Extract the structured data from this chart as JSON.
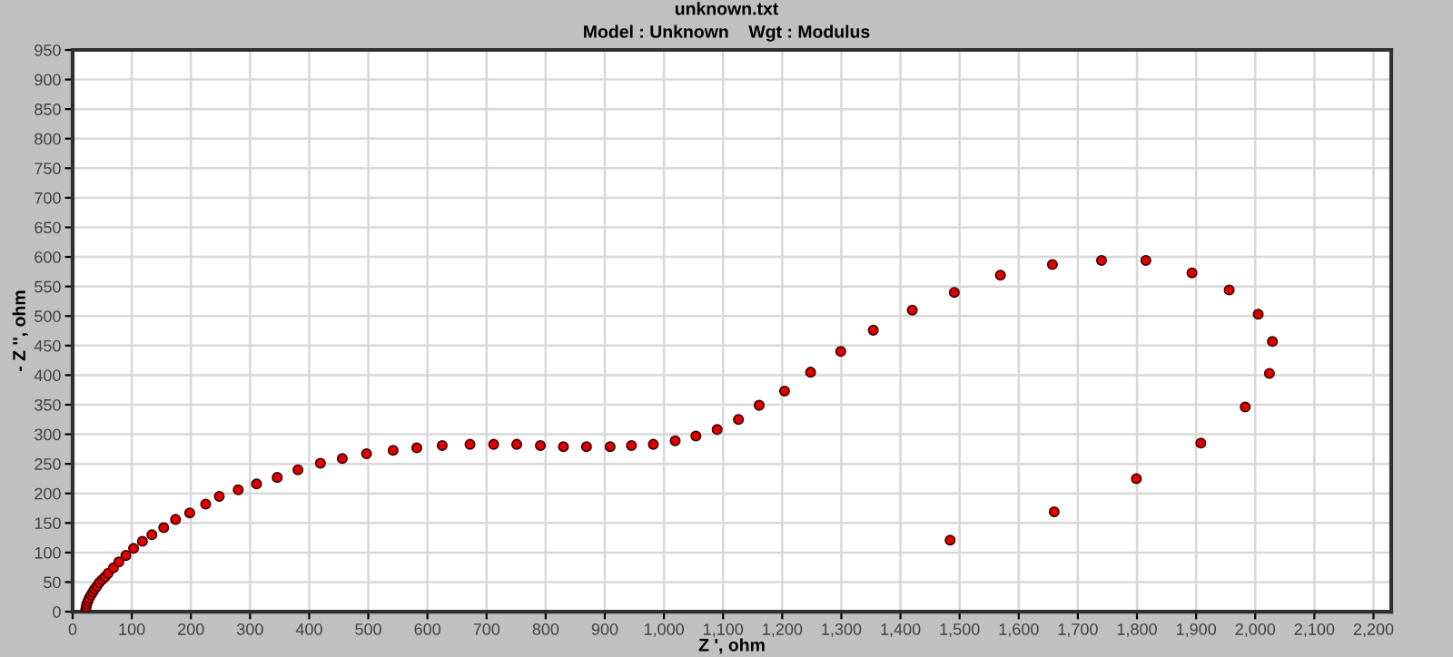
{
  "chart_data": {
    "type": "scatter",
    "title": "unknown.txt",
    "subtitle": "Model : Unknown    Wgt : Modulus",
    "xlabel": "Z ', ohm",
    "ylabel": "- Z '', ohm",
    "x": [
      22,
      23,
      24,
      26,
      28,
      31,
      34,
      37,
      41,
      45,
      50,
      55,
      60,
      69,
      78,
      90,
      103,
      118,
      134,
      154,
      174,
      198,
      225,
      248,
      280,
      311,
      346,
      381,
      419,
      456,
      497,
      542,
      582,
      625,
      672,
      712,
      751,
      791,
      830,
      869,
      909,
      945,
      982,
      1019,
      1054,
      1090,
      1126,
      1161,
      1204,
      1248,
      1299,
      1354,
      1420,
      1491,
      1569,
      1657,
      1740,
      1815,
      1893,
      1956,
      2005,
      2029,
      2024,
      1983,
      1908,
      1799,
      1660,
      1484
    ],
    "series": [
      {
        "color": "#e00000",
        "values": [
          3,
          8,
          13,
          18,
          23,
          28,
          33,
          38,
          43,
          49,
          54,
          59,
          65,
          74,
          84,
          95,
          107,
          119,
          130,
          142,
          156,
          167,
          182,
          195,
          206,
          216,
          227,
          240,
          251,
          259,
          267,
          273,
          277,
          281,
          283,
          283,
          283,
          281,
          279,
          279,
          279,
          281,
          283,
          289,
          297,
          308,
          325,
          349,
          373,
          405,
          440,
          476,
          510,
          540,
          569,
          587,
          594,
          594,
          573,
          544,
          503,
          457,
          403,
          346,
          285,
          225,
          169,
          121
        ]
      }
    ],
    "xlim": [
      0,
      2230
    ],
    "ylim": [
      0,
      950
    ],
    "xticks": [
      0,
      100,
      200,
      300,
      400,
      500,
      600,
      700,
      800,
      900,
      {
        "value": 1000,
        "label": "1,000"
      },
      {
        "value": 1100,
        "label": "1,100"
      },
      {
        "value": 1200,
        "label": "1,200"
      },
      {
        "value": 1300,
        "label": "1,300"
      },
      {
        "value": 1400,
        "label": "1,400"
      },
      {
        "value": 1500,
        "label": "1,500"
      },
      {
        "value": 1600,
        "label": "1,600"
      },
      {
        "value": 1700,
        "label": "1,700"
      },
      {
        "value": 1800,
        "label": "1,800"
      },
      {
        "value": 1900,
        "label": "1,900"
      },
      {
        "value": 2000,
        "label": "2,000"
      },
      {
        "value": 2100,
        "label": "2,100"
      },
      {
        "value": 2200,
        "label": "2,200"
      }
    ],
    "yticks": [
      0,
      50,
      100,
      150,
      200,
      250,
      300,
      350,
      400,
      450,
      500,
      550,
      600,
      650,
      700,
      750,
      800,
      850,
      900,
      950
    ],
    "grid": true,
    "marker": "circle"
  }
}
